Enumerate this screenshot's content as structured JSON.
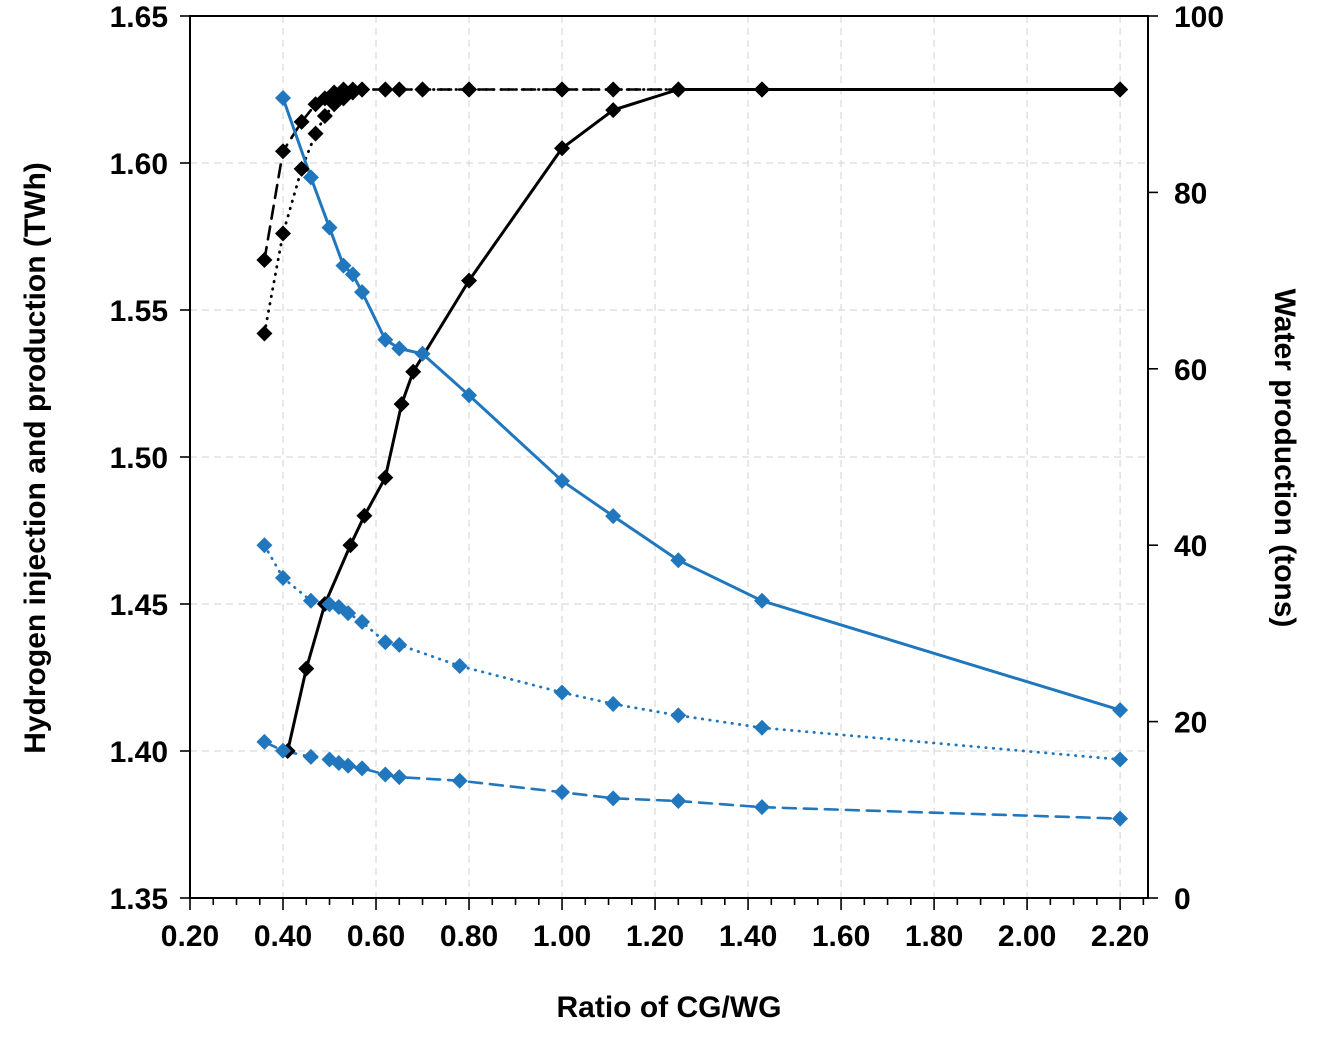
{
  "chart_data": {
    "type": "line",
    "title": "",
    "xlabel": "Ratio of CG/WG",
    "ylabel_left": "Hydrogen injection and production (TWh)",
    "ylabel_right": "Water production (tons)",
    "xlim": [
      0.2,
      2.26
    ],
    "x_ticks": [
      0.2,
      0.4,
      0.6,
      0.8,
      1.0,
      1.2,
      1.4,
      1.6,
      1.8,
      2.0,
      2.2
    ],
    "x_minor_tick_step": 0.05,
    "ylim_left": [
      1.35,
      1.65
    ],
    "y_ticks_left": [
      1.35,
      1.4,
      1.45,
      1.5,
      1.55,
      1.6,
      1.65
    ],
    "ylim_right": [
      0,
      100
    ],
    "y_ticks_right": [
      0,
      20,
      40,
      60,
      80,
      100
    ],
    "grid": true,
    "legend": "none",
    "colors": {
      "black": "#000000",
      "blue": "#2077BE",
      "grid": "#d9d9d9",
      "axis": "#000000"
    },
    "series": [
      {
        "name": "black-dashed-hydrogen",
        "axis": "left",
        "color": "black",
        "style": "dashed",
        "width": 2.6,
        "x": [
          0.36,
          0.4,
          0.44,
          0.47,
          0.49,
          0.51,
          0.53,
          0.55,
          0.57,
          0.62,
          0.65,
          0.7,
          0.8,
          1.0,
          1.11,
          1.25,
          1.43,
          2.2
        ],
        "y": [
          1.567,
          1.604,
          1.614,
          1.62,
          1.622,
          1.624,
          1.625,
          1.625,
          1.625,
          1.625,
          1.625,
          1.625,
          1.625,
          1.625,
          1.625,
          1.625,
          1.625,
          1.625
        ]
      },
      {
        "name": "black-dotted-hydrogen",
        "axis": "left",
        "color": "black",
        "style": "dotted",
        "width": 2.8,
        "x": [
          0.36,
          0.4,
          0.44,
          0.47,
          0.49,
          0.51,
          0.53,
          0.55,
          0.57,
          0.62,
          0.65,
          0.7,
          0.8,
          1.0,
          1.11,
          1.25,
          1.43,
          2.2
        ],
        "y": [
          1.542,
          1.576,
          1.598,
          1.61,
          1.616,
          1.62,
          1.622,
          1.624,
          1.625,
          1.625,
          1.625,
          1.625,
          1.625,
          1.625,
          1.625,
          1.625,
          1.625,
          1.625
        ]
      },
      {
        "name": "black-solid-hydrogen",
        "axis": "left",
        "color": "black",
        "style": "solid",
        "width": 3,
        "x": [
          0.41,
          0.45,
          0.49,
          0.545,
          0.575,
          0.62,
          0.655,
          0.68,
          0.8,
          1.0,
          1.11,
          1.25,
          1.43,
          2.2
        ],
        "y": [
          1.4,
          1.428,
          1.45,
          1.47,
          1.48,
          1.493,
          1.518,
          1.529,
          1.56,
          1.605,
          1.618,
          1.625,
          1.625,
          1.625
        ]
      },
      {
        "name": "blue-dotted-water",
        "axis": "right",
        "color": "blue",
        "style": "dotted",
        "width": 2.8,
        "x": [
          0.36,
          0.4,
          0.46,
          0.5,
          0.52,
          0.54,
          0.57,
          0.62,
          0.65,
          0.78,
          1.0,
          1.11,
          1.25,
          1.43,
          2.2
        ],
        "y": [
          40.0,
          36.3,
          33.7,
          33.3,
          33.0,
          32.3,
          31.3,
          29.0,
          28.7,
          26.3,
          23.3,
          22.0,
          20.7,
          19.3,
          15.7
        ]
      },
      {
        "name": "blue-dashed-water",
        "axis": "right",
        "color": "blue",
        "style": "dashed",
        "width": 2.6,
        "x": [
          0.36,
          0.4,
          0.46,
          0.5,
          0.52,
          0.54,
          0.57,
          0.62,
          0.65,
          0.78,
          1.0,
          1.11,
          1.25,
          1.43,
          2.2
        ],
        "y": [
          17.7,
          16.7,
          16.0,
          15.7,
          15.3,
          15.0,
          14.7,
          14.0,
          13.7,
          13.3,
          12.0,
          11.3,
          11.0,
          10.3,
          9.0
        ]
      },
      {
        "name": "blue-solid-water",
        "axis": "right",
        "color": "blue",
        "style": "solid",
        "width": 3,
        "x": [
          0.4,
          0.46,
          0.5,
          0.53,
          0.55,
          0.57,
          0.62,
          0.65,
          0.7,
          0.8,
          1.0,
          1.11,
          1.25,
          1.43,
          2.2
        ],
        "y": [
          90.7,
          81.7,
          76.0,
          71.7,
          70.7,
          68.7,
          63.3,
          62.3,
          61.7,
          57.0,
          47.3,
          43.3,
          38.3,
          33.7,
          21.3
        ]
      }
    ]
  }
}
